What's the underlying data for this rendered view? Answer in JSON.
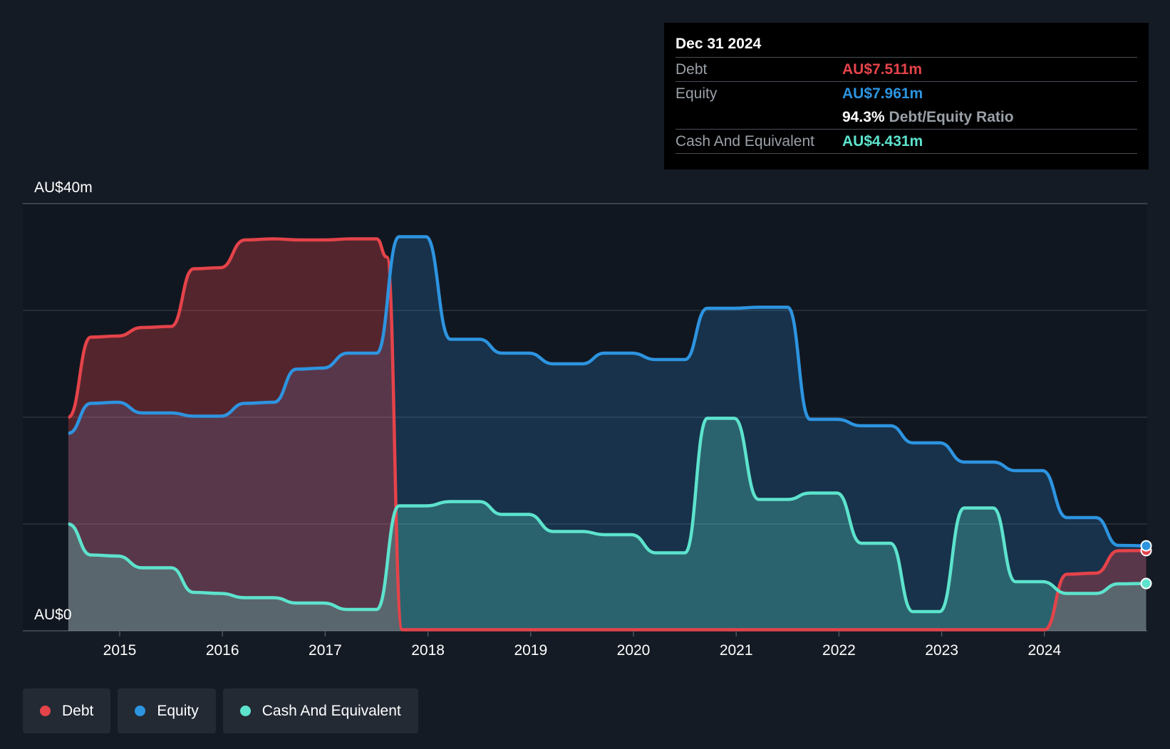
{
  "colors": {
    "background": "#151b24",
    "plot_background": "#111720",
    "debt": "#e5434a",
    "equity": "#2d94e0",
    "cash": "#5de3cd",
    "grid": "#3a414b"
  },
  "tooltip": {
    "date": "Dec 31 2024",
    "debt_label": "Debt",
    "debt_value": "AU$7.511m",
    "equity_label": "Equity",
    "equity_value": "AU$7.961m",
    "ratio_value": "94.3%",
    "ratio_label": "Debt/Equity Ratio",
    "cash_label": "Cash And Equivalent",
    "cash_value": "AU$4.431m"
  },
  "legend": [
    {
      "label": "Debt",
      "color": "#e5434a"
    },
    {
      "label": "Equity",
      "color": "#2d94e0"
    },
    {
      "label": "Cash And Equivalent",
      "color": "#5de3cd"
    }
  ],
  "chart_data": {
    "type": "area",
    "title": "",
    "xlabel": "",
    "ylabel": "",
    "y_top_label": "AU$40m",
    "y_bottom_label": "AU$0",
    "ylim": [
      0,
      40
    ],
    "xlim": [
      2014.45,
      2024.99
    ],
    "x_ticks": [
      2015,
      2016,
      2017,
      2018,
      2019,
      2020,
      2021,
      2022,
      2023,
      2024
    ],
    "x_tick_labels": [
      "2015",
      "2016",
      "2017",
      "2018",
      "2019",
      "2020",
      "2021",
      "2022",
      "2023",
      "2024"
    ],
    "grid": true,
    "legend_position": "bottom-left",
    "series": [
      {
        "name": "Debt",
        "color": "#e5434a",
        "points": [
          [
            2014.5,
            20.0
          ],
          [
            2014.72,
            27.5
          ],
          [
            2014.98,
            27.6
          ],
          [
            2015.22,
            28.4
          ],
          [
            2015.5,
            28.5
          ],
          [
            2015.72,
            33.9
          ],
          [
            2015.98,
            34.0
          ],
          [
            2016.22,
            36.6
          ],
          [
            2016.5,
            36.7
          ],
          [
            2016.75,
            36.6
          ],
          [
            2017.0,
            36.6
          ],
          [
            2017.25,
            36.7
          ],
          [
            2017.5,
            36.7
          ],
          [
            2017.6,
            35.0
          ],
          [
            2017.75,
            0.1
          ],
          [
            2018.5,
            0.1
          ],
          [
            2019.5,
            0.1
          ],
          [
            2020.5,
            0.1
          ],
          [
            2021.5,
            0.1
          ],
          [
            2022.5,
            0.1
          ],
          [
            2023.5,
            0.1
          ],
          [
            2024.0,
            0.1
          ],
          [
            2024.22,
            5.3
          ],
          [
            2024.5,
            5.4
          ],
          [
            2024.72,
            7.5
          ],
          [
            2024.99,
            7.511
          ]
        ]
      },
      {
        "name": "Equity",
        "color": "#2d94e0",
        "points": [
          [
            2014.5,
            18.5
          ],
          [
            2014.72,
            21.3
          ],
          [
            2014.98,
            21.4
          ],
          [
            2015.22,
            20.4
          ],
          [
            2015.5,
            20.4
          ],
          [
            2015.72,
            20.1
          ],
          [
            2015.98,
            20.1
          ],
          [
            2016.22,
            21.3
          ],
          [
            2016.5,
            21.4
          ],
          [
            2016.72,
            24.5
          ],
          [
            2016.98,
            24.6
          ],
          [
            2017.22,
            26.0
          ],
          [
            2017.5,
            26.0
          ],
          [
            2017.72,
            36.9
          ],
          [
            2017.98,
            36.9
          ],
          [
            2018.22,
            27.3
          ],
          [
            2018.5,
            27.3
          ],
          [
            2018.72,
            26.0
          ],
          [
            2018.98,
            26.0
          ],
          [
            2019.22,
            25.0
          ],
          [
            2019.5,
            25.0
          ],
          [
            2019.72,
            26.0
          ],
          [
            2019.98,
            26.0
          ],
          [
            2020.22,
            25.4
          ],
          [
            2020.5,
            25.4
          ],
          [
            2020.72,
            30.2
          ],
          [
            2020.98,
            30.2
          ],
          [
            2021.22,
            30.3
          ],
          [
            2021.5,
            30.3
          ],
          [
            2021.72,
            19.8
          ],
          [
            2021.98,
            19.8
          ],
          [
            2022.22,
            19.2
          ],
          [
            2022.5,
            19.2
          ],
          [
            2022.72,
            17.6
          ],
          [
            2022.98,
            17.6
          ],
          [
            2023.22,
            15.8
          ],
          [
            2023.5,
            15.8
          ],
          [
            2023.72,
            15.0
          ],
          [
            2023.98,
            15.0
          ],
          [
            2024.22,
            10.6
          ],
          [
            2024.5,
            10.6
          ],
          [
            2024.72,
            8.0
          ],
          [
            2024.99,
            7.961
          ]
        ]
      },
      {
        "name": "Cash And Equivalent",
        "color": "#5de3cd",
        "points": [
          [
            2014.5,
            10.0
          ],
          [
            2014.72,
            7.1
          ],
          [
            2014.98,
            7.0
          ],
          [
            2015.22,
            5.9
          ],
          [
            2015.5,
            5.9
          ],
          [
            2015.72,
            3.6
          ],
          [
            2015.98,
            3.5
          ],
          [
            2016.22,
            3.1
          ],
          [
            2016.5,
            3.1
          ],
          [
            2016.72,
            2.6
          ],
          [
            2016.98,
            2.6
          ],
          [
            2017.22,
            2.0
          ],
          [
            2017.5,
            2.0
          ],
          [
            2017.72,
            11.7
          ],
          [
            2017.98,
            11.7
          ],
          [
            2018.22,
            12.1
          ],
          [
            2018.5,
            12.1
          ],
          [
            2018.72,
            10.9
          ],
          [
            2018.98,
            10.9
          ],
          [
            2019.22,
            9.3
          ],
          [
            2019.5,
            9.3
          ],
          [
            2019.72,
            9.0
          ],
          [
            2019.98,
            9.0
          ],
          [
            2020.22,
            7.3
          ],
          [
            2020.5,
            7.3
          ],
          [
            2020.72,
            19.9
          ],
          [
            2020.98,
            19.9
          ],
          [
            2021.22,
            12.3
          ],
          [
            2021.5,
            12.3
          ],
          [
            2021.72,
            12.9
          ],
          [
            2021.98,
            12.9
          ],
          [
            2022.22,
            8.2
          ],
          [
            2022.5,
            8.2
          ],
          [
            2022.72,
            1.8
          ],
          [
            2022.98,
            1.8
          ],
          [
            2023.22,
            11.5
          ],
          [
            2023.5,
            11.5
          ],
          [
            2023.72,
            4.6
          ],
          [
            2023.98,
            4.6
          ],
          [
            2024.22,
            3.5
          ],
          [
            2024.5,
            3.5
          ],
          [
            2024.72,
            4.4
          ],
          [
            2024.99,
            4.431
          ]
        ]
      }
    ]
  }
}
